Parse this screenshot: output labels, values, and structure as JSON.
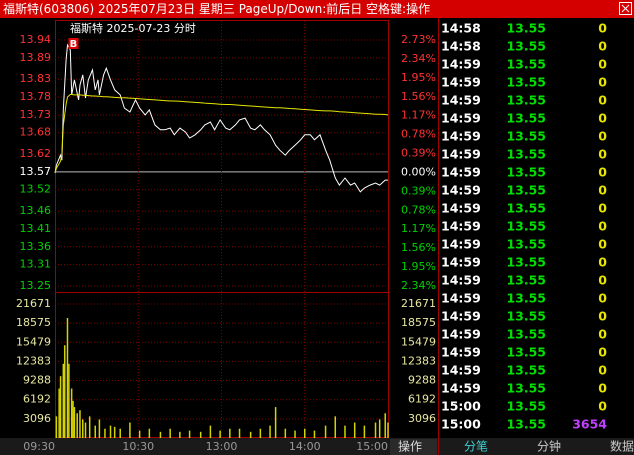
{
  "header": {
    "title": "福斯特(603806) 2025年07月23日 星期三 PageUp/Down:前后日 空格键:操作"
  },
  "chart_data": [
    {
      "type": "line",
      "title": "福斯特  2025-07-23 分时",
      "marker": "B",
      "x": [
        "09:30",
        "09:31",
        "09:34",
        "09:35",
        "09:36",
        "09:38",
        "09:39",
        "09:41",
        "09:42",
        "09:44",
        "09:47",
        "09:48",
        "09:50",
        "09:52",
        "09:54",
        "09:57",
        "09:59",
        "10:01",
        "10:02",
        "10:05",
        "10:07",
        "10:10",
        "10:13",
        "10:17",
        "10:20",
        "10:24",
        "10:28",
        "10:31",
        "10:35",
        "10:38",
        "10:42",
        "10:46",
        "10:49",
        "10:53",
        "10:56",
        "11:00",
        "11:04",
        "11:07",
        "11:11",
        "11:15",
        "11:18",
        "11:22",
        "11:25",
        "11:29",
        "13:03",
        "13:06",
        "13:10",
        "13:13",
        "13:17",
        "13:21",
        "13:24",
        "13:28",
        "13:31",
        "13:35",
        "13:39",
        "13:42",
        "13:46",
        "13:49",
        "13:53",
        "13:57",
        "14:00",
        "14:04",
        "14:07",
        "14:11",
        "14:15",
        "14:18",
        "14:22",
        "14:25",
        "14:29",
        "14:33",
        "14:36",
        "14:40",
        "14:43",
        "14:47",
        "14:51",
        "14:54",
        "14:58",
        "15:00"
      ],
      "series": [
        {
          "color": "#ffffff",
          "values": [
            13.567,
            13.589,
            13.617,
            13.603,
            13.744,
            13.884,
            13.926,
            13.912,
            13.786,
            13.828,
            13.772,
            13.814,
            13.842,
            13.777,
            13.828,
            13.856,
            13.8,
            13.828,
            13.786,
            13.842,
            13.861,
            13.828,
            13.8,
            13.786,
            13.749,
            13.738,
            13.772,
            13.749,
            13.73,
            13.744,
            13.702,
            13.688,
            13.688,
            13.693,
            13.674,
            13.693,
            13.682,
            13.665,
            13.674,
            13.688,
            13.702,
            13.71,
            13.688,
            13.716,
            13.693,
            13.688,
            13.702,
            13.716,
            13.721,
            13.693,
            13.688,
            13.702,
            13.688,
            13.674,
            13.645,
            13.631,
            13.617,
            13.631,
            13.645,
            13.66,
            13.674,
            13.674,
            13.66,
            13.674,
            13.631,
            13.603,
            13.553,
            13.533,
            13.553,
            13.533,
            13.539,
            13.514,
            13.525,
            13.533,
            13.539,
            13.533,
            13.547,
            13.547
          ]
        },
        {
          "color": "#e6e600",
          "values": [
            13.567,
            13.58,
            13.6,
            13.62,
            13.7,
            13.76,
            13.78,
            13.787,
            13.787,
            13.786,
            13.786,
            13.786,
            13.785,
            13.785,
            13.784,
            13.783,
            13.783,
            13.782,
            13.782,
            13.781,
            13.781,
            13.78,
            13.779,
            13.778,
            13.778,
            13.777,
            13.776,
            13.775,
            13.774,
            13.773,
            13.772,
            13.771,
            13.77,
            13.769,
            13.769,
            13.768,
            13.767,
            13.766,
            13.765,
            13.764,
            13.763,
            13.762,
            13.761,
            13.76,
            13.759,
            13.759,
            13.758,
            13.757,
            13.756,
            13.755,
            13.754,
            13.753,
            13.752,
            13.751,
            13.75,
            13.75,
            13.749,
            13.748,
            13.747,
            13.746,
            13.745,
            13.744,
            13.743,
            13.742,
            13.741,
            13.741,
            13.74,
            13.739,
            13.738,
            13.737,
            13.736,
            13.735,
            13.734,
            13.733,
            13.732,
            13.732,
            13.731,
            13.73
          ]
        }
      ],
      "ylim": [
        13.25,
        13.94
      ],
      "yticks": [
        13.94,
        13.89,
        13.83,
        13.78,
        13.73,
        13.68,
        13.62,
        13.57,
        13.52,
        13.46,
        13.41,
        13.36,
        13.31,
        13.25
      ],
      "y2lim": [
        -2.34,
        2.73
      ],
      "y2ticks": [
        {
          "value": 2.73,
          "label": "2.73%"
        },
        {
          "value": 2.34,
          "label": "2.34%"
        },
        {
          "value": 1.95,
          "label": "1.95%"
        },
        {
          "value": 1.56,
          "label": "1.56%"
        },
        {
          "value": 1.17,
          "label": "1.17%"
        },
        {
          "value": 0.78,
          "label": "0.78%"
        },
        {
          "value": 0.39,
          "label": "0.39%"
        },
        {
          "value": 0,
          "label": "0.00%"
        },
        {
          "value": -0.39,
          "label": "0.39%"
        },
        {
          "value": -0.78,
          "label": "0.78%"
        },
        {
          "value": -1.17,
          "label": "1.17%"
        },
        {
          "value": -1.56,
          "label": "1.56%"
        },
        {
          "value": -1.95,
          "label": "1.95%"
        },
        {
          "value": -2.34,
          "label": "2.34%"
        }
      ],
      "xticks": [
        "09:30",
        "10:30",
        "13:00",
        "14:00",
        "15:00"
      ],
      "grid": true
    },
    {
      "type": "bar",
      "color": "#d4d400",
      "x": [
        "09:31",
        "09:33",
        "09:34",
        "09:36",
        "09:37",
        "09:39",
        "09:40",
        "09:42",
        "09:43",
        "09:44",
        "09:46",
        "09:48",
        "09:50",
        "09:52",
        "09:55",
        "09:59",
        "10:02",
        "10:06",
        "10:10",
        "10:13",
        "10:17",
        "10:24",
        "10:31",
        "10:38",
        "10:46",
        "10:53",
        "11:00",
        "11:07",
        "11:15",
        "11:22",
        "11:29",
        "13:06",
        "13:13",
        "13:21",
        "13:28",
        "13:35",
        "13:39",
        "13:46",
        "13:53",
        "14:00",
        "14:07",
        "14:15",
        "14:22",
        "14:29",
        "14:36",
        "14:43",
        "14:51",
        "14:54",
        "14:58",
        "15:00"
      ],
      "values": [
        3500,
        8000,
        10000,
        12000,
        15000,
        19400,
        12000,
        8000,
        6000,
        5000,
        4000,
        4500,
        3000,
        2500,
        3500,
        2000,
        3000,
        1500,
        2000,
        1800,
        1500,
        2500,
        1200,
        1500,
        1000,
        1500,
        1000,
        1200,
        1000,
        2000,
        1200,
        1500,
        1500,
        1000,
        1500,
        2000,
        5000,
        1500,
        1200,
        1500,
        1200,
        2000,
        3500,
        2000,
        2500,
        2000,
        2500,
        3000,
        4000,
        2500
      ],
      "ylim": [
        0,
        22800
      ],
      "yticks": [
        21671,
        18575,
        15479,
        12383,
        9288,
        6192,
        3096
      ],
      "grid": true
    }
  ],
  "trades": {
    "rows": [
      [
        "14:58",
        13.55,
        0
      ],
      [
        "14:58",
        13.55,
        0
      ],
      [
        "14:59",
        13.55,
        0
      ],
      [
        "14:59",
        13.55,
        0
      ],
      [
        "14:59",
        13.55,
        0
      ],
      [
        "14:59",
        13.55,
        0
      ],
      [
        "14:59",
        13.55,
        0
      ],
      [
        "14:59",
        13.55,
        0
      ],
      [
        "14:59",
        13.55,
        0
      ],
      [
        "14:59",
        13.55,
        0
      ],
      [
        "14:59",
        13.55,
        0
      ],
      [
        "14:59",
        13.55,
        0
      ],
      [
        "14:59",
        13.55,
        0
      ],
      [
        "14:59",
        13.55,
        0
      ],
      [
        "14:59",
        13.55,
        0
      ],
      [
        "14:59",
        13.55,
        0
      ],
      [
        "14:59",
        13.55,
        0
      ],
      [
        "14:59",
        13.55,
        0
      ],
      [
        "14:59",
        13.55,
        0
      ],
      [
        "14:59",
        13.55,
        0
      ],
      [
        "14:59",
        13.55,
        0
      ],
      [
        "15:00",
        13.55,
        0
      ],
      [
        "15:00",
        13.55,
        3654
      ]
    ]
  },
  "footer": {
    "button": "操作",
    "tabs": [
      "分笔",
      "分钟",
      "数据"
    ]
  }
}
